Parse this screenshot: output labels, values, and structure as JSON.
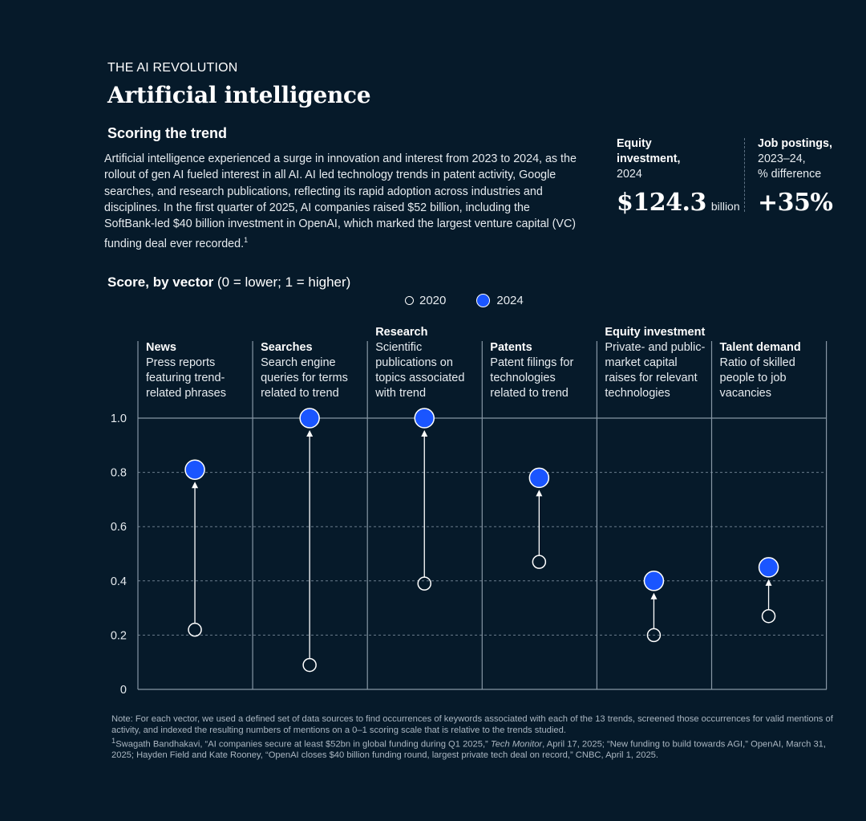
{
  "header": {
    "eyebrow": "THE AI REVOLUTION",
    "title": "Artificial intelligence",
    "subtitle": "Scoring the trend",
    "body": "Artificial intelligence experienced a surge in innovation and interest from 2023 to 2024, as the rollout of gen AI fueled interest in all AI. AI led technology trends in patent activity, Google searches, and research publications, reflecting its rapid adoption across industries and disciplines. In the first quarter of 2025, AI companies raised $52 billion, including the SoftBank-led $40 billion investment in OpenAI, which marked the largest venture capital (VC) funding deal ever recorded.",
    "body_footnote_mark": "1"
  },
  "stats": {
    "equity": {
      "label_bold_1": "Equity",
      "label_bold_2": "investment,",
      "label_sub": "2024",
      "value": "$124.3",
      "unit": "billion"
    },
    "jobs": {
      "label_bold": "Job postings,",
      "label_sub_1": "2023–24,",
      "label_sub_2": "% difference",
      "value": "+35%"
    }
  },
  "chart_heading": {
    "bold": "Score, by vector",
    "rest": " (0 = lower; 1 = higher)"
  },
  "legend": {
    "year_2020": "2020",
    "year_2024": "2024"
  },
  "colors": {
    "background": "#061a2a",
    "accent_2024": "#1a55ff",
    "grid": "#6b7d8d",
    "text": "#e6ebef"
  },
  "chart_data": {
    "type": "dot-arrow",
    "ylim": [
      0,
      1
    ],
    "yticks": [
      "0",
      "0.2",
      "0.4",
      "0.6",
      "0.8",
      "1.0"
    ],
    "series_names": [
      "2020",
      "2024"
    ],
    "vectors": [
      {
        "name": "News",
        "desc": [
          "Press reports",
          "featuring trend-",
          "related phrases"
        ],
        "v2020": 0.22,
        "v2024": 0.81
      },
      {
        "name": "Searches",
        "desc": [
          "Search engine",
          "queries for terms",
          "related to trend"
        ],
        "v2020": 0.09,
        "v2024": 1.0
      },
      {
        "name": "Research",
        "desc": [
          "Scientific",
          "publications on",
          "topics associated",
          "with trend"
        ],
        "v2020": 0.39,
        "v2024": 1.0
      },
      {
        "name": "Patents",
        "desc": [
          "Patent filings for",
          "technologies",
          "related to trend"
        ],
        "v2020": 0.47,
        "v2024": 0.78
      },
      {
        "name": "Equity investment",
        "desc": [
          "Private- and public-",
          "market capital",
          "raises for relevant",
          "technologies"
        ],
        "v2020": 0.2,
        "v2024": 0.4
      },
      {
        "name": "Talent demand",
        "desc": [
          "Ratio of skilled",
          "people to job",
          "vacancies"
        ],
        "v2020": 0.27,
        "v2024": 0.45
      }
    ]
  },
  "footnotes": {
    "note": "Note: For each vector, we used a defined set of data sources to find occurrences of keywords associated with each of the 13 trends, screened those occurrences for valid mentions of activity, and indexed the resulting numbers of mentions on a 0–1 scoring scale that is relative to the trends studied.",
    "ref_mark": "1",
    "ref_part1": "Swagath Bandhakavi, “AI companies secure at least $52bn in global funding during Q1 2025,” ",
    "ref_source1": "Tech Monitor",
    "ref_part2": ", April 17, 2025; “New funding to build towards AGI,” OpenAI, March 31, 2025; Hayden Field and Kate Rooney, “OpenAI closes $40 billion funding round, largest private tech deal on record,” CNBC, April 1, 2025."
  }
}
